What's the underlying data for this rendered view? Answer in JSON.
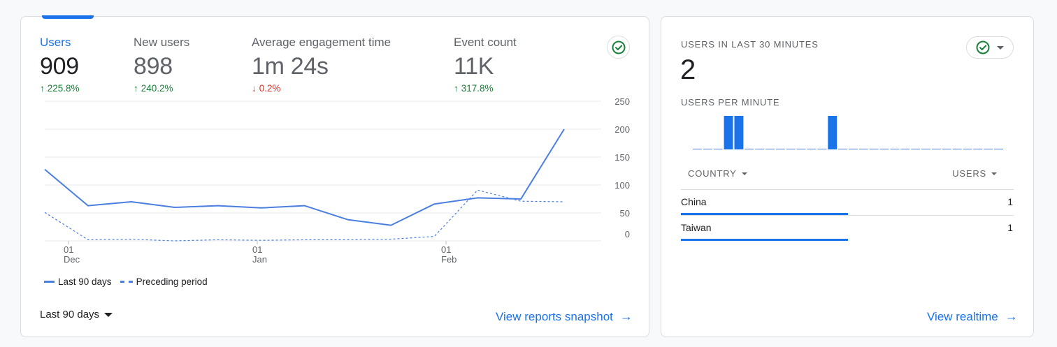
{
  "overview": {
    "metrics": [
      {
        "label": "Users",
        "value": "909",
        "change": "225.8%",
        "direction": "up"
      },
      {
        "label": "New users",
        "value": "898",
        "change": "240.2%",
        "direction": "up"
      },
      {
        "label": "Average engagement time",
        "value": "1m 24s",
        "change": "0.2%",
        "direction": "down"
      },
      {
        "label": "Event count",
        "value": "11K",
        "change": "317.8%",
        "direction": "up"
      }
    ],
    "check_icon": "check-circle-icon",
    "date_range_label": "Last 90 days",
    "view_reports_label": "View reports snapshot"
  },
  "chart_data": {
    "type": "line",
    "y_ticks": [
      "250",
      "200",
      "150",
      "100",
      "50",
      "0"
    ],
    "ylim": [
      0,
      250
    ],
    "x_ticks": [
      {
        "day": "01",
        "month": "Dec"
      },
      {
        "day": "01",
        "month": "Jan"
      },
      {
        "day": "01",
        "month": "Feb"
      }
    ],
    "series": [
      {
        "name": "Last 90 days",
        "style": "solid",
        "values": [
          128,
          63,
          70,
          60,
          63,
          59,
          63,
          38,
          28,
          66,
          77,
          75,
          200
        ]
      },
      {
        "name": "Preceding period",
        "style": "dashed",
        "values": [
          51,
          2,
          3,
          0,
          2,
          1,
          2,
          2,
          3,
          8,
          91,
          71,
          70
        ]
      }
    ],
    "colors": {
      "line": "#4a7fe0",
      "grid": "#e8eaed"
    }
  },
  "realtime": {
    "title": "USERS IN LAST 30 MINUTES",
    "value": "2",
    "per_minute_label": "USERS PER MINUTE",
    "per_minute": [
      0,
      0,
      0,
      1,
      1,
      0,
      0,
      0,
      0,
      0,
      0,
      0,
      0,
      1,
      0,
      0,
      0,
      0,
      0,
      0,
      0,
      0,
      0,
      0,
      0,
      0,
      0,
      0,
      0,
      0
    ],
    "country_header": "COUNTRY",
    "users_header": "USERS",
    "rows": [
      {
        "country": "China",
        "users": "1"
      },
      {
        "country": "Taiwan",
        "users": "1"
      }
    ],
    "view_realtime_label": "View realtime"
  }
}
